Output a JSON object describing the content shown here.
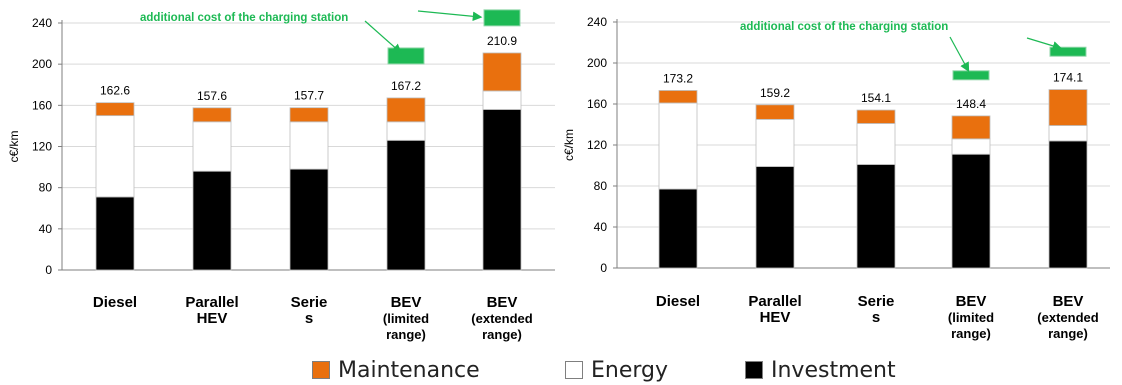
{
  "colors": {
    "maintenance": "#e9700e",
    "energy": "#ffffff",
    "investment": "#000000",
    "charging_station": "#1db954",
    "annotation": "#1db954"
  },
  "legend": {
    "maintenance": "Maintenance",
    "energy": "Energy",
    "investment": "Investment"
  },
  "chart_data": [
    {
      "type": "bar",
      "stacked": true,
      "ylabel": "c€/km",
      "ylim": [
        0,
        240
      ],
      "yticks": [
        "0",
        "40",
        "80",
        "120",
        "160",
        "200",
        "240"
      ],
      "grid": true,
      "categories": [
        [
          "Diesel"
        ],
        [
          "Parallel",
          "HEV"
        ],
        [
          "Serie",
          "s"
        ],
        [
          "BEV",
          "(limited",
          "range)"
        ],
        [
          "BEV",
          "(extended",
          "range)"
        ]
      ],
      "totals": [
        "162.6",
        "157.6",
        "157.7",
        "167.2",
        "210.9"
      ],
      "series": [
        {
          "name": "Investment",
          "values": [
            71,
            96,
            98,
            126,
            156
          ]
        },
        {
          "name": "Energy",
          "values": [
            79,
            48,
            46,
            18,
            18
          ]
        },
        {
          "name": "Maintenance",
          "values": [
            12.6,
            13.6,
            13.7,
            23.2,
            36.9
          ]
        }
      ],
      "charging_station": {
        "bars": [
          3,
          4
        ],
        "values": [
          208,
          245
        ]
      },
      "annotation": "additional cost of the charging station"
    },
    {
      "type": "bar",
      "stacked": true,
      "ylabel": "c€/km",
      "ylim": [
        0,
        240
      ],
      "yticks": [
        "0",
        "40",
        "80",
        "120",
        "160",
        "200",
        "240"
      ],
      "grid": true,
      "categories": [
        [
          "Diesel"
        ],
        [
          "Parallel",
          "HEV"
        ],
        [
          "Serie",
          "s"
        ],
        [
          "BEV",
          "(limited",
          "range)"
        ],
        [
          "BEV",
          "(extended",
          "range)"
        ]
      ],
      "totals": [
        "173.2",
        "159.2",
        "154.1",
        "148.4",
        "174.1"
      ],
      "series": [
        {
          "name": "Investment",
          "values": [
            77,
            99,
            101,
            111,
            124
          ]
        },
        {
          "name": "Energy",
          "values": [
            84,
            46,
            40,
            15,
            15
          ]
        },
        {
          "name": "Maintenance",
          "values": [
            12.2,
            14.2,
            13.1,
            22.4,
            35.1
          ]
        }
      ],
      "charging_station": {
        "bars": [
          3,
          4
        ],
        "values": [
          188,
          211
        ]
      },
      "annotation": "additional cost of the charging station"
    }
  ]
}
